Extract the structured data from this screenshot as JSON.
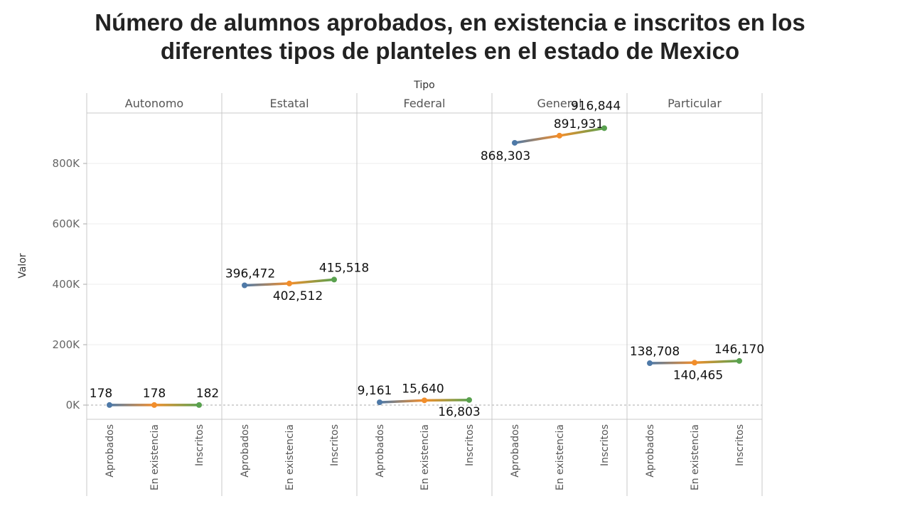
{
  "title": {
    "line1": "Número de alumnos aprobados, en existencia e inscritos en los",
    "line2": "diferentes tipos de planteles en el estado de Mexico"
  },
  "colors": {
    "Aprobados": "#4e79a7",
    "En existencia": "#f28e2b",
    "Inscritos": "#59a14f"
  },
  "chart_data": {
    "type": "line",
    "title": "Número de alumnos aprobados, en existencia e inscritos en los diferentes tipos de planteles en el estado de Mexico",
    "facet_label": "Tipo",
    "ylabel": "Valor",
    "categories": [
      "Aprobados",
      "En existencia",
      "Inscritos"
    ],
    "ylim": [
      -50000,
      1000000
    ],
    "yticks": [
      0,
      200000,
      400000,
      600000,
      800000
    ],
    "ytick_labels": [
      "0K",
      "200K",
      "400K",
      "600K",
      "800K"
    ],
    "grid": true,
    "facets": [
      {
        "name": "Autonomo",
        "values": [
          178,
          178,
          182
        ],
        "labels": [
          "178",
          "178",
          "182"
        ]
      },
      {
        "name": "Estatal",
        "values": [
          396472,
          402512,
          415518
        ],
        "labels": [
          "396,472",
          "402,512",
          "415,518"
        ]
      },
      {
        "name": "Federal",
        "values": [
          9161,
          15640,
          16803
        ],
        "labels": [
          "9,161",
          "15,640",
          "16,803"
        ]
      },
      {
        "name": "General",
        "values": [
          868303,
          891931,
          916844
        ],
        "labels": [
          "868,303",
          "891,931",
          "916,844"
        ]
      },
      {
        "name": "Particular",
        "values": [
          138708,
          140465,
          146170
        ],
        "labels": [
          "138,708",
          "140,465",
          "146,170"
        ]
      }
    ]
  }
}
